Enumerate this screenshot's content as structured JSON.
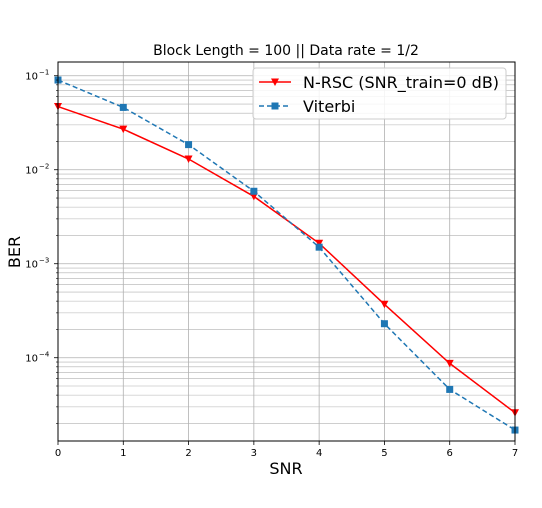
{
  "chart_data": {
    "type": "line",
    "title": "Block Length = 100 || Data rate = 1/2",
    "xlabel": "SNR",
    "ylabel": "BER",
    "x": [
      0,
      1,
      2,
      3,
      4,
      5,
      6,
      7
    ],
    "xlim": [
      0,
      7
    ],
    "ylim": [
      1.3e-05,
      0.14
    ],
    "yscale": "log",
    "grid": true,
    "grid_minor_y": true,
    "legend_position": "top-right",
    "x_ticks": [
      "0",
      "1",
      "2",
      "3",
      "4",
      "5",
      "6",
      "7"
    ],
    "y_ticks": [
      {
        "base": "10",
        "exp": "−1",
        "value": 0.1
      },
      {
        "base": "10",
        "exp": "−2",
        "value": 0.01
      },
      {
        "base": "10",
        "exp": "−3",
        "value": 0.001
      },
      {
        "base": "10",
        "exp": "−4",
        "value": 0.0001
      }
    ],
    "series": [
      {
        "name": "N-RSC (SNR_train=0 dB)",
        "color": "#ff0000",
        "line_style": "solid",
        "marker": "triangle-down",
        "values": [
          0.047,
          0.027,
          0.013,
          0.0052,
          0.00165,
          0.00037,
          8.7e-05,
          2.6e-05
        ]
      },
      {
        "name": "Viterbi",
        "color": "#1f77b4",
        "line_style": "dashed",
        "marker": "square",
        "values": [
          0.09,
          0.046,
          0.0185,
          0.0059,
          0.0015,
          0.00023,
          4.6e-05,
          1.7e-05
        ]
      }
    ]
  }
}
